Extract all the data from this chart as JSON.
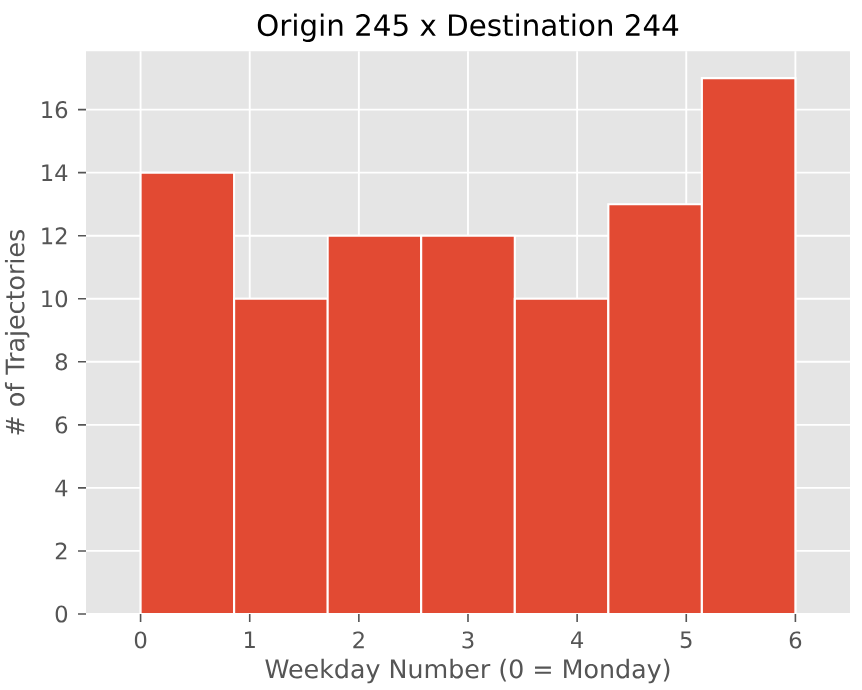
{
  "chart_data": {
    "type": "histogram",
    "title": "Origin 245 x Destination 244",
    "xlabel": "Weekday Number (0 = Monday)",
    "ylabel": "# of Trajectories",
    "bins": [
      0,
      0.857,
      1.714,
      2.571,
      3.429,
      4.286,
      5.143,
      6
    ],
    "values": [
      14,
      10,
      12,
      12,
      10,
      13,
      17
    ],
    "color": "#e24a33",
    "xlim": [
      -0.5,
      6.5
    ],
    "ylim": [
      0,
      17.85
    ],
    "xticks": [
      0,
      1,
      2,
      3,
      4,
      5,
      6
    ],
    "yticks": [
      0,
      2,
      4,
      6,
      8,
      10,
      12,
      14,
      16
    ],
    "grid": true
  }
}
